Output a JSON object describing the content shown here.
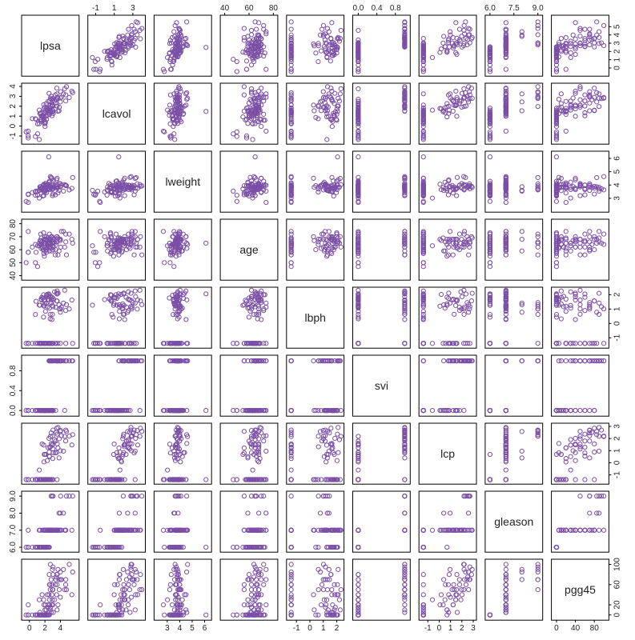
{
  "chart_data": {
    "type": "scatter",
    "title": "",
    "point_color": "#7b4fa6",
    "variables": [
      {
        "name": "lpsa",
        "range": [
          -0.6,
          6.0
        ],
        "ticks": [
          0,
          1,
          2,
          3,
          4,
          5
        ],
        "tick_side": "right"
      },
      {
        "name": "lcavol",
        "range": [
          -1.5,
          4.0
        ],
        "ticks": [
          -1,
          0,
          1,
          2,
          3,
          4
        ],
        "tick_side": "left"
      },
      {
        "name": "lweight",
        "range": [
          2.2,
          6.3
        ],
        "ticks": [
          3,
          4,
          5,
          6
        ],
        "tick_side": "right"
      },
      {
        "name": "age",
        "range": [
          39,
          81
        ],
        "ticks": [
          40,
          50,
          60,
          70,
          80
        ],
        "tick_side": "left"
      },
      {
        "name": "lbph",
        "range": [
          -1.5,
          2.3
        ],
        "ticks": [
          -1,
          0,
          1,
          2
        ],
        "tick_side": "right"
      },
      {
        "name": "svi",
        "range": [
          -0.05,
          1.05
        ],
        "ticks": [
          0.0,
          0.4,
          0.8
        ],
        "tick_side": "left"
      },
      {
        "name": "lcp",
        "range": [
          -1.5,
          3.0
        ],
        "ticks": [
          -1,
          0,
          1,
          2,
          3
        ],
        "tick_side": "right"
      },
      {
        "name": "gleason",
        "range": [
          5.9,
          9.1
        ],
        "ticks": [
          6.0,
          7.0,
          8.0,
          9.0
        ],
        "tick_side": "left"
      },
      {
        "name": "pgg45",
        "range": [
          -4,
          104
        ],
        "ticks": [
          0,
          20,
          60,
          100
        ],
        "tick_side": "right"
      }
    ],
    "top_axis_ticks": {
      "lcavol": [
        -1,
        1,
        3
      ],
      "age": [
        40,
        60,
        80
      ],
      "svi": [
        0.0,
        0.4,
        0.8
      ],
      "gleason": [
        6.0,
        7.5,
        9.0
      ]
    },
    "bottom_axis_ticks": {
      "lpsa": [
        0,
        2,
        4
      ],
      "lweight": [
        3,
        4,
        5,
        6
      ],
      "lbph": [
        -1,
        0,
        1,
        2
      ],
      "lcp": [
        -1,
        0,
        1,
        2,
        3
      ],
      "pgg45": [
        0,
        40,
        80
      ]
    },
    "left_axis_ticks": {
      "lcavol": [
        -1,
        0,
        1,
        2,
        3,
        4
      ],
      "age": [
        40,
        50,
        60,
        70,
        80
      ],
      "svi": [
        0.0,
        0.4,
        0.8
      ],
      "gleason": [
        6.0,
        7.0,
        8.0,
        9.0
      ]
    },
    "right_axis_ticks": {
      "lpsa": [
        0,
        1,
        2,
        3,
        4,
        5
      ],
      "lweight": [
        3,
        4,
        5,
        6
      ],
      "lbph": [
        -1,
        0,
        1,
        2
      ],
      "lcp": [
        -1,
        0,
        1,
        2,
        3
      ],
      "pgg45": [
        0,
        20,
        60,
        100
      ]
    },
    "observations": [
      [
        -0.43,
        -0.58,
        2.77,
        50,
        -1.39,
        0,
        -1.39,
        6,
        0
      ],
      [
        -0.16,
        -0.99,
        3.32,
        58,
        -1.39,
        0,
        -1.39,
        6,
        0
      ],
      [
        -0.16,
        -0.51,
        2.69,
        74,
        -1.39,
        0,
        -1.39,
        7,
        20
      ],
      [
        -0.16,
        -1.2,
        3.28,
        58,
        -1.39,
        0,
        -1.39,
        6,
        0
      ],
      [
        0.37,
        0.75,
        3.43,
        62,
        -1.39,
        0,
        -1.39,
        6,
        0
      ],
      [
        0.77,
        -1.05,
        3.23,
        50,
        -1.39,
        0,
        -1.39,
        6,
        0
      ],
      [
        0.77,
        0.74,
        3.47,
        64,
        0.62,
        0,
        -1.39,
        6,
        0
      ],
      [
        0.85,
        0.69,
        3.54,
        58,
        1.54,
        0,
        -1.39,
        6,
        0
      ],
      [
        1.05,
        -0.78,
        3.54,
        47,
        -1.39,
        0,
        -1.39,
        6,
        0
      ],
      [
        1.05,
        0.22,
        3.24,
        63,
        -1.39,
        0,
        -1.39,
        6,
        0
      ],
      [
        1.27,
        0.25,
        3.6,
        65,
        -1.39,
        0,
        -1.39,
        6,
        0
      ],
      [
        1.27,
        -1.35,
        3.6,
        63,
        1.27,
        0,
        -1.39,
        6,
        0
      ],
      [
        1.27,
        1.61,
        3.02,
        63,
        -1.39,
        0,
        -0.6,
        7,
        30
      ],
      [
        1.35,
        1.27,
        3.86,
        67,
        1.27,
        0,
        -1.39,
        7,
        5
      ],
      [
        1.4,
        1.2,
        3.85,
        64,
        -1.39,
        0,
        -1.39,
        6,
        0
      ],
      [
        1.45,
        0.59,
        3.88,
        72,
        -1.39,
        0,
        -1.39,
        6,
        0
      ],
      [
        1.5,
        0.47,
        3.76,
        67,
        1.7,
        0,
        -1.39,
        6,
        0
      ],
      [
        1.5,
        1.33,
        3.64,
        61,
        -1.39,
        0,
        -1.39,
        6,
        0
      ],
      [
        1.53,
        0.67,
        3.77,
        69,
        1.64,
        0,
        -1.39,
        6,
        0
      ],
      [
        1.53,
        1.01,
        3.4,
        64,
        -1.39,
        0,
        -1.39,
        6,
        0
      ],
      [
        1.6,
        1.03,
        3.78,
        66,
        1.82,
        0,
        -1.39,
        6,
        0
      ],
      [
        1.64,
        0.99,
        3.74,
        62,
        -1.39,
        0,
        1.55,
        7,
        40
      ],
      [
        1.74,
        1.1,
        3.17,
        60,
        1.77,
        0,
        -1.39,
        6,
        0
      ],
      [
        1.81,
        0.87,
        3.95,
        60,
        0.44,
        0,
        -1.39,
        6,
        0
      ],
      [
        1.82,
        0.59,
        4.02,
        73,
        2.0,
        0,
        -1.39,
        6,
        0
      ],
      [
        1.84,
        2.16,
        3.67,
        65,
        -1.39,
        0,
        1.46,
        7,
        30
      ],
      [
        1.84,
        1.39,
        3.2,
        65,
        -1.39,
        0,
        -1.39,
        6,
        0
      ],
      [
        1.86,
        0.62,
        3.5,
        57,
        1.62,
        0,
        -1.39,
        6,
        0
      ],
      [
        1.88,
        1.78,
        4.06,
        68,
        1.2,
        0,
        0.07,
        7,
        20
      ],
      [
        1.92,
        0.93,
        3.71,
        55,
        1.26,
        0,
        0.69,
        6,
        0
      ],
      [
        1.95,
        0.26,
        3.62,
        63,
        -1.39,
        0,
        -1.39,
        6,
        0
      ],
      [
        2.01,
        -0.04,
        3.48,
        70,
        1.66,
        0,
        -1.39,
        6,
        0
      ],
      [
        2.0,
        1.92,
        3.58,
        64,
        1.36,
        0,
        0.69,
        7,
        10
      ],
      [
        2.02,
        1.3,
        3.59,
        65,
        -1.39,
        0,
        -1.39,
        6,
        0
      ],
      [
        2.03,
        0.27,
        3.84,
        59,
        -1.39,
        0,
        -1.39,
        6,
        0
      ],
      [
        2.07,
        1.56,
        3.99,
        61,
        0.84,
        0,
        -1.39,
        7,
        20
      ],
      [
        2.07,
        0.43,
        4.12,
        68,
        -1.39,
        0,
        -1.39,
        6,
        0
      ],
      [
        2.16,
        2.27,
        4.01,
        68,
        1.82,
        0,
        0.69,
        7,
        10
      ],
      [
        2.19,
        0.99,
        3.93,
        60,
        1.38,
        0,
        -1.39,
        6,
        0
      ],
      [
        2.21,
        1.81,
        3.96,
        58,
        -1.39,
        0,
        -1.39,
        6,
        0
      ],
      [
        2.21,
        0.68,
        3.43,
        70,
        1.97,
        0,
        -1.39,
        6,
        0
      ],
      [
        2.3,
        1.74,
        3.65,
        67,
        2.02,
        0,
        0.18,
        7,
        40
      ],
      [
        2.33,
        1.61,
        3.93,
        69,
        -1.39,
        0,
        -1.39,
        6,
        0
      ],
      [
        2.36,
        1.56,
        4.06,
        62,
        1.16,
        0,
        -1.39,
        7,
        15
      ],
      [
        2.37,
        1.14,
        4.01,
        63,
        -1.39,
        0,
        -1.39,
        6,
        0
      ],
      [
        2.41,
        2.49,
        3.76,
        65,
        1.69,
        0,
        1.24,
        7,
        20
      ],
      [
        2.53,
        3.3,
        3.76,
        62,
        1.86,
        1,
        2.01,
        7,
        40
      ],
      [
        2.55,
        1.6,
        3.89,
        68,
        -1.39,
        0,
        0.88,
        7,
        80
      ],
      [
        2.56,
        1.82,
        3.76,
        66,
        -1.39,
        1,
        -1.39,
        7,
        5
      ],
      [
        2.57,
        1.19,
        4.28,
        72,
        2.0,
        0,
        -1.39,
        6,
        0
      ],
      [
        2.58,
        1.34,
        3.74,
        66,
        -1.39,
        0,
        0.55,
        7,
        60
      ],
      [
        2.59,
        1.86,
        4.21,
        59,
        1.07,
        0,
        0.51,
        7,
        30
      ],
      [
        2.61,
        1.18,
        3.87,
        65,
        -1.39,
        0,
        -1.39,
        7,
        20
      ],
      [
        2.64,
        2.54,
        3.66,
        62,
        -1.39,
        1,
        1.28,
        7,
        60
      ],
      [
        2.68,
        1.54,
        3.83,
        67,
        0.32,
        0,
        -1.39,
        7,
        10
      ],
      [
        2.69,
        2.09,
        3.86,
        68,
        0.64,
        1,
        1.32,
        7,
        50
      ],
      [
        2.7,
        2.81,
        4.63,
        64,
        -1.39,
        1,
        2.16,
        7,
        100
      ],
      [
        2.72,
        1.43,
        3.86,
        62,
        1.89,
        0,
        -1.39,
        7,
        15
      ],
      [
        2.8,
        3.0,
        3.85,
        70,
        1.45,
        1,
        2.46,
        9,
        70
      ],
      [
        2.81,
        2.7,
        4.57,
        61,
        1.64,
        0,
        1.59,
        7,
        5
      ],
      [
        2.88,
        1.44,
        4.16,
        59,
        -1.39,
        0,
        -1.39,
        7,
        20
      ],
      [
        2.9,
        2.12,
        4.51,
        70,
        0.27,
        1,
        -1.39,
        7,
        40
      ],
      [
        2.91,
        1.04,
        3.68,
        67,
        1.82,
        0,
        -1.39,
        7,
        60
      ],
      [
        2.96,
        2.05,
        3.68,
        63,
        1.25,
        0,
        1.45,
        7,
        30
      ],
      [
        2.96,
        1.97,
        3.7,
        66,
        0.63,
        1,
        2.19,
        9,
        90
      ],
      [
        2.97,
        2.12,
        3.2,
        65,
        -1.39,
        1,
        1.53,
        7,
        50
      ],
      [
        3.01,
        1.44,
        3.82,
        69,
        -1.39,
        0,
        0.35,
        7,
        20
      ],
      [
        3.03,
        2.65,
        3.97,
        68,
        1.63,
        1,
        1.14,
        7,
        50
      ],
      [
        3.04,
        1.56,
        3.32,
        60,
        -1.39,
        0,
        -1.39,
        7,
        80
      ],
      [
        3.04,
        2.78,
        3.72,
        65,
        1.16,
        1,
        2.7,
        9,
        95
      ],
      [
        3.08,
        1.27,
        4.31,
        62,
        1.74,
        0,
        0.83,
        7,
        5
      ],
      [
        3.24,
        2.52,
        3.84,
        65,
        2.2,
        1,
        1.91,
        7,
        30
      ],
      [
        3.34,
        3.14,
        3.26,
        56,
        -1.39,
        1,
        0.81,
        7,
        60
      ],
      [
        3.39,
        2.32,
        3.98,
        60,
        1.13,
        0,
        1.79,
        7,
        70
      ],
      [
        3.44,
        2.66,
        3.81,
        64,
        -1.39,
        1,
        2.51,
        7,
        75
      ],
      [
        3.51,
        2.01,
        4.39,
        66,
        2.11,
        1,
        0.84,
        7,
        40
      ],
      [
        3.53,
        3.82,
        3.9,
        70,
        1.57,
        1,
        2.85,
        7,
        80
      ],
      [
        3.57,
        3.25,
        4.5,
        70,
        2.26,
        1,
        -1.39,
        7,
        10
      ],
      [
        3.57,
        2.02,
        4.0,
        66,
        2.05,
        1,
        2.36,
        7,
        60
      ],
      [
        3.59,
        2.89,
        3.77,
        68,
        1.56,
        1,
        1.56,
        7,
        80
      ],
      [
        3.68,
        1.5,
        3.4,
        56,
        -1.39,
        1,
        1.22,
        7,
        20
      ],
      [
        3.69,
        2.8,
        3.82,
        69,
        2.1,
        1,
        2.91,
        7,
        90
      ],
      [
        3.82,
        1.54,
        3.59,
        59,
        1.3,
        1,
        0.4,
        8,
        70
      ],
      [
        3.85,
        1.91,
        4.11,
        68,
        1.01,
        1,
        1.98,
        7,
        50
      ],
      [
        3.99,
        2.44,
        3.87,
        68,
        0.78,
        1,
        2.58,
        8,
        85
      ],
      [
        3.99,
        2.83,
        3.88,
        67,
        -1.39,
        1,
        0.99,
        7,
        35
      ],
      [
        4.03,
        3.47,
        4.09,
        62,
        1.0,
        1,
        2.66,
        9,
        70
      ],
      [
        4.13,
        2.91,
        3.98,
        74,
        1.13,
        1,
        2.23,
        7,
        70
      ],
      [
        4.39,
        3.25,
        3.54,
        74,
        1.42,
        1,
        0.96,
        8,
        90
      ],
      [
        4.68,
        2.53,
        3.99,
        72,
        0.9,
        1,
        1.8,
        7,
        60
      ],
      [
        4.69,
        3.14,
        3.96,
        66,
        -1.39,
        1,
        2.7,
        7,
        70
      ],
      [
        4.78,
        3.97,
        3.94,
        56,
        1.31,
        1,
        2.59,
        9,
        50
      ],
      [
        5.14,
        2.88,
        3.63,
        72,
        1.01,
        1,
        2.2,
        9,
        100
      ],
      [
        5.48,
        3.52,
        3.75,
        68,
        1.63,
        1,
        1.47,
        7,
        40
      ],
      [
        5.58,
        3.36,
        4.56,
        65,
        -1.39,
        1,
        2.32,
        9,
        85
      ],
      [
        4.55,
        3.76,
        4.03,
        62,
        2.31,
        0,
        2.18,
        7,
        50
      ],
      [
        2.49,
        1.48,
        6.11,
        65,
        2.06,
        0,
        -1.39,
        6,
        0
      ]
    ]
  }
}
